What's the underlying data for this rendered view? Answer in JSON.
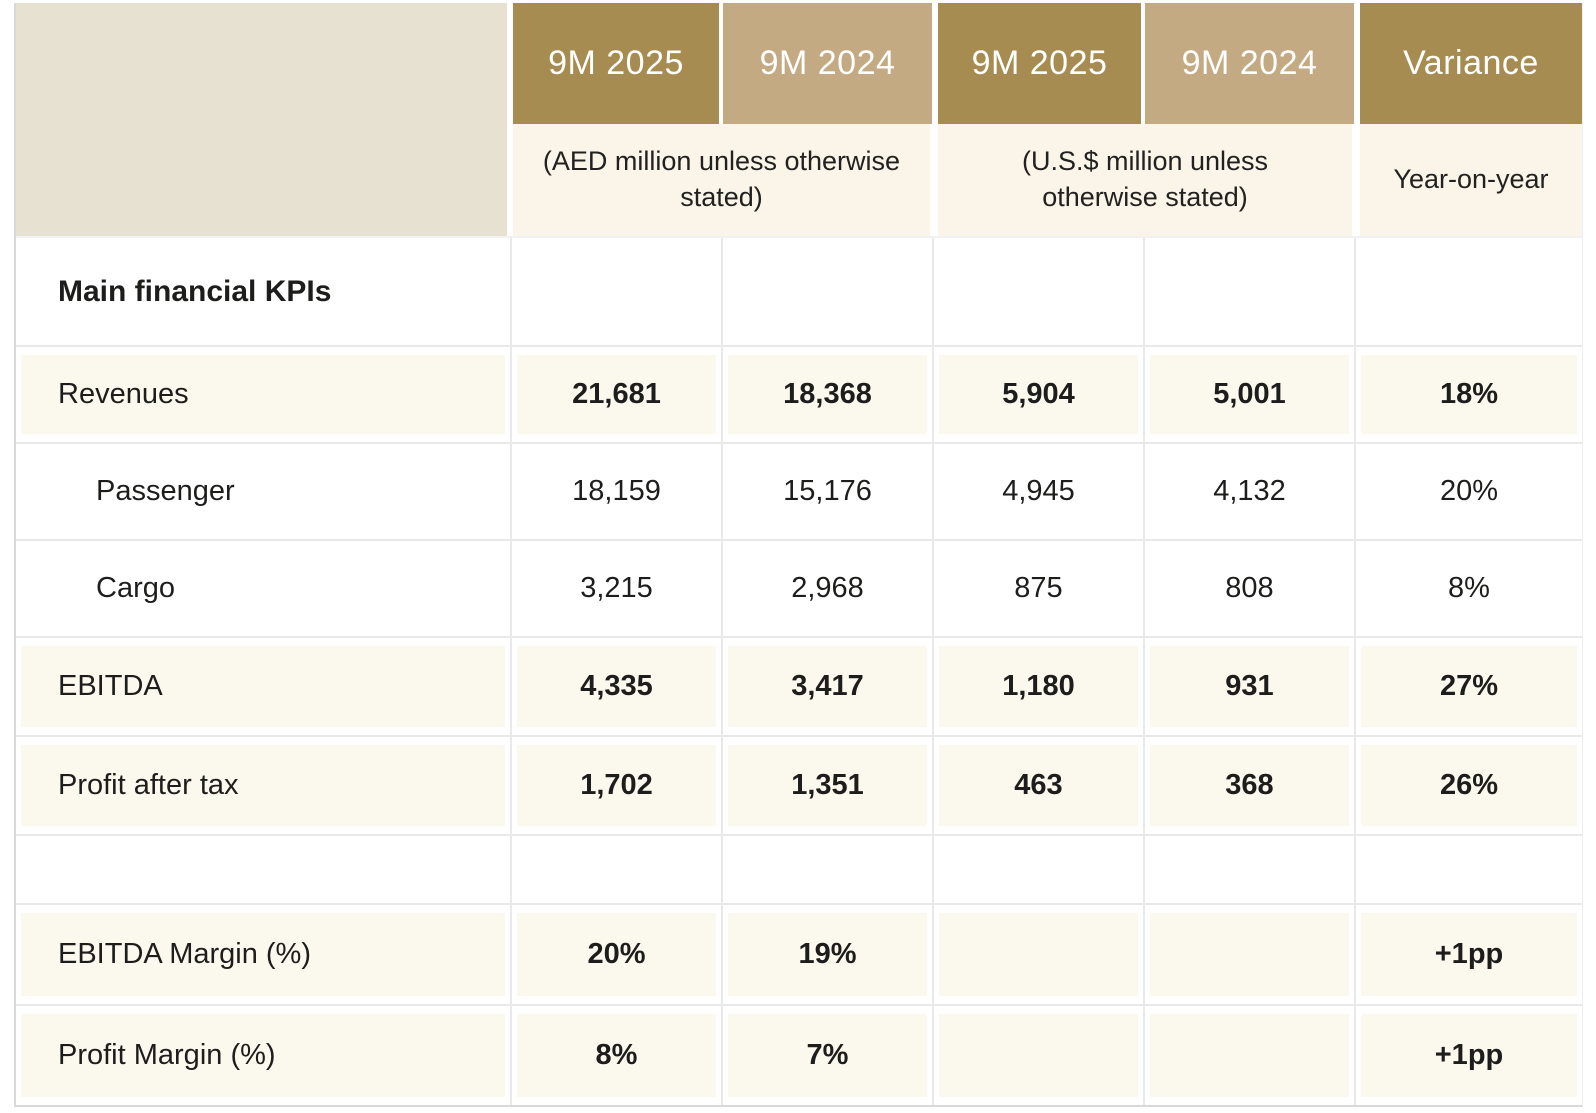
{
  "colors": {
    "gold": "#a78c52",
    "tan": "#c3aa82",
    "beige": "#e7e1d2",
    "cream": "#faf4e9",
    "row_tint": "#fbf8ee",
    "grid": "#e9e9e9",
    "ink": "#1d1d1b",
    "head_ink": "#ffffff"
  },
  "header": {
    "groups": [
      {
        "columns": [
          {
            "label": "9M 2025"
          },
          {
            "label": "9M 2024"
          }
        ],
        "subtitle": "(AED million unless otherwise stated)"
      },
      {
        "columns": [
          {
            "label": "9M 2025"
          },
          {
            "label": "9M 2024"
          }
        ],
        "subtitle": "(U.S.$ million unless otherwise stated)"
      },
      {
        "columns": [
          {
            "label": "Variance"
          }
        ],
        "subtitle": "Year-on-year"
      }
    ]
  },
  "table": {
    "section_title": "Main financial KPIs",
    "columns": [
      "AED 9M 2025",
      "AED 9M 2024",
      "USD 9M 2025",
      "USD 9M 2024",
      "Variance"
    ],
    "rows": [
      {
        "label": "Revenues",
        "indent": false,
        "tinted": true,
        "values": [
          "21,681",
          "18,368",
          "5,904",
          "5,001",
          "18%"
        ]
      },
      {
        "label": "Passenger",
        "indent": true,
        "tinted": false,
        "values": [
          "18,159",
          "15,176",
          "4,945",
          "4,132",
          "20%"
        ]
      },
      {
        "label": "Cargo",
        "indent": true,
        "tinted": false,
        "values": [
          "3,215",
          "2,968",
          "875",
          "808",
          "8%"
        ]
      },
      {
        "label": "EBITDA",
        "indent": false,
        "tinted": true,
        "values": [
          "4,335",
          "3,417",
          "1,180",
          "931",
          "27%"
        ]
      },
      {
        "label": "Profit after tax",
        "indent": false,
        "tinted": true,
        "values": [
          "1,702",
          "1,351",
          "463",
          "368",
          "26%"
        ]
      },
      {
        "label": "",
        "indent": false,
        "tinted": false,
        "values": [
          "",
          "",
          "",
          "",
          ""
        ]
      },
      {
        "label": "EBITDA Margin (%)",
        "indent": false,
        "tinted": true,
        "values": [
          "20%",
          "19%",
          "",
          "",
          "+1pp"
        ]
      },
      {
        "label": "Profit Margin (%)",
        "indent": false,
        "tinted": true,
        "values": [
          "8%",
          "7%",
          "",
          "",
          "+1pp"
        ]
      }
    ]
  }
}
